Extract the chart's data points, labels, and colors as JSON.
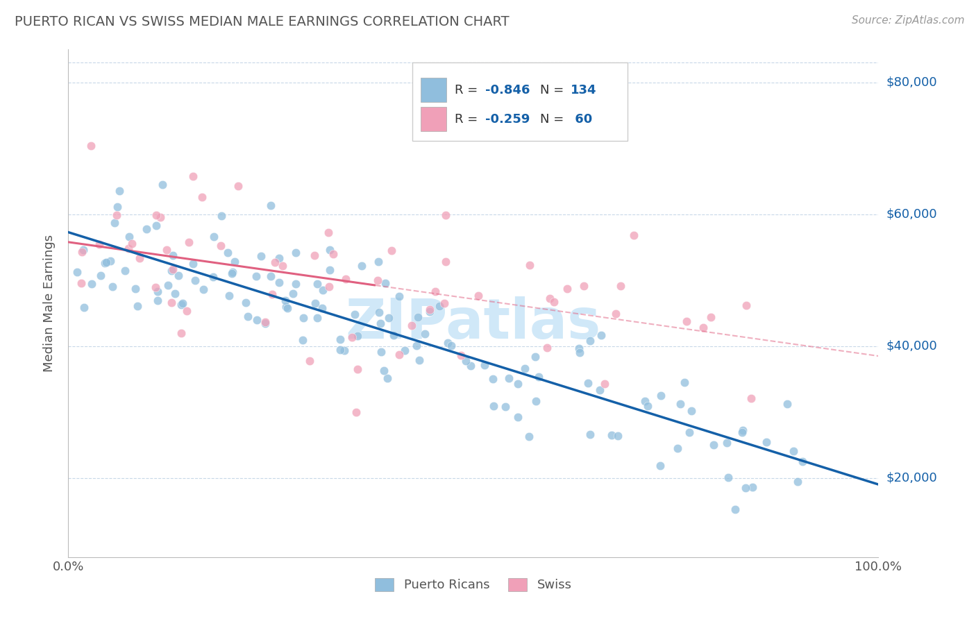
{
  "title": "PUERTO RICAN VS SWISS MEDIAN MALE EARNINGS CORRELATION CHART",
  "source": "Source: ZipAtlas.com",
  "ylabel": "Median Male Earnings",
  "xlim": [
    0.0,
    1.0
  ],
  "ylim": [
    8000,
    85000
  ],
  "yticks": [
    20000,
    40000,
    60000,
    80000
  ],
  "ytick_labels": [
    "$20,000",
    "$40,000",
    "$60,000",
    "$80,000"
  ],
  "xtick_labels": [
    "0.0%",
    "100.0%"
  ],
  "bottom_legend": [
    "Puerto Ricans",
    "Swiss"
  ],
  "blue_color": "#90bedd",
  "pink_color": "#f0a0b8",
  "blue_line_color": "#1460a8",
  "pink_line_color": "#e06080",
  "watermark": "ZIPatlas",
  "watermark_color": "#d0e8f8",
  "background_color": "#ffffff",
  "grid_color": "#c8d8e8",
  "blue_intercept": 57000,
  "blue_slope": -38000,
  "pink_intercept": 56000,
  "pink_slope": -18000,
  "blue_noise": 5500,
  "pink_noise": 9000,
  "title_color": "#555555",
  "source_color": "#999999",
  "axis_label_color": "#555555",
  "tick_color": "#555555",
  "right_label_color": "#1460a8",
  "legend_r_color": "#1460a8",
  "legend_text_color": "#333333"
}
